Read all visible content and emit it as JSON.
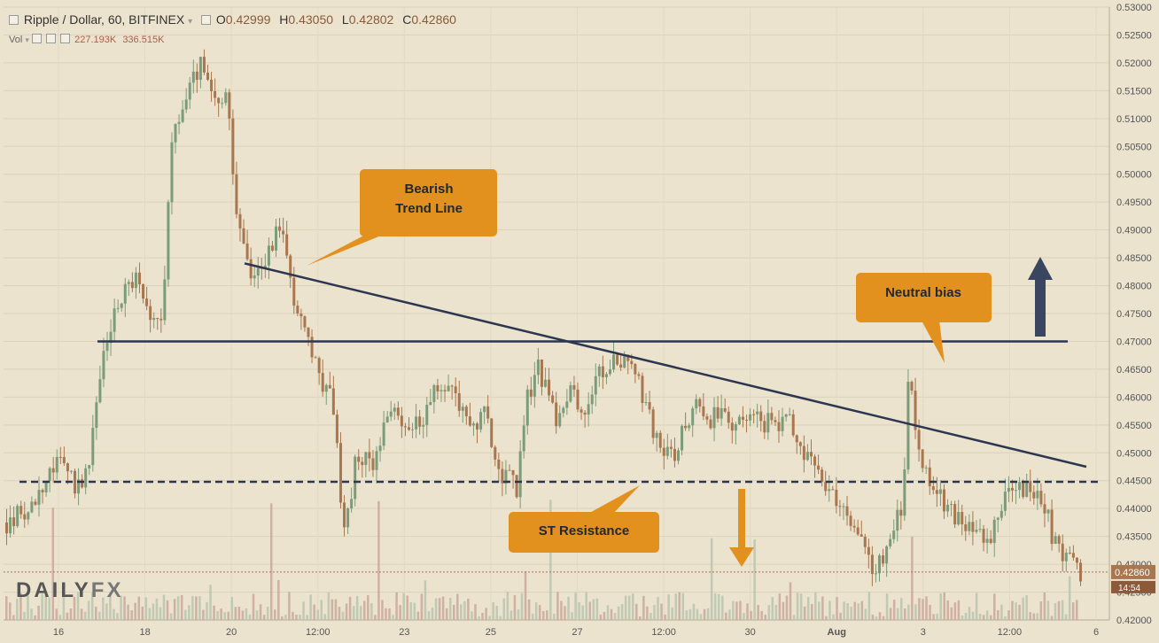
{
  "header": {
    "symbol": "Ripple / Dollar, 60, BITFINEX",
    "open_label": "O",
    "open": "0.42999",
    "high_label": "H",
    "high": "0.43050",
    "low_label": "L",
    "low": "0.42802",
    "close_label": "C",
    "close": "0.42860",
    "vol_label": "Vol",
    "vol1": "227.193K",
    "vol2": "336.515K"
  },
  "annotations": {
    "trend_line": "Bearish\nTrend Line",
    "neutral": "Neutral bias",
    "resistance": "ST Resistance"
  },
  "logo": {
    "part1": "DAILY",
    "part2": "FX"
  },
  "price_tag": {
    "price": "0.42860",
    "time": "14:54"
  },
  "colors": {
    "background": "#ebe3cd",
    "up": "#7a9c7a",
    "down": "#a8764f",
    "callout": "#e3911e",
    "lines": "#2c3650"
  },
  "chart_data": {
    "type": "candlestick",
    "title": "Ripple / Dollar, 60, BITFINEX",
    "ylim": [
      0.42,
      0.53
    ],
    "y_ticks": [
      "0.53000",
      "0.52500",
      "0.52000",
      "0.51500",
      "0.51000",
      "0.50500",
      "0.50000",
      "0.49500",
      "0.49000",
      "0.48500",
      "0.48000",
      "0.47500",
      "0.47000",
      "0.46500",
      "0.46000",
      "0.45500",
      "0.45000",
      "0.44500",
      "0.44000",
      "0.43500",
      "0.43000",
      "0.42500",
      "0.42000"
    ],
    "x_ticks": [
      "16",
      "18",
      "20",
      "12:00",
      "23",
      "25",
      "27",
      "12:00",
      "30",
      "Aug",
      "3",
      "12:00",
      "6"
    ],
    "price_path": [
      [
        0,
        0.4375
      ],
      [
        0.02,
        0.44
      ],
      [
        0.04,
        0.447
      ],
      [
        0.055,
        0.448
      ],
      [
        0.065,
        0.444
      ],
      [
        0.075,
        0.4455
      ],
      [
        0.09,
        0.468
      ],
      [
        0.105,
        0.478
      ],
      [
        0.12,
        0.482
      ],
      [
        0.135,
        0.472
      ],
      [
        0.145,
        0.476
      ],
      [
        0.155,
        0.508
      ],
      [
        0.17,
        0.515
      ],
      [
        0.18,
        0.52
      ],
      [
        0.195,
        0.512
      ],
      [
        0.205,
        0.514
      ],
      [
        0.215,
        0.49
      ],
      [
        0.225,
        0.483
      ],
      [
        0.24,
        0.484
      ],
      [
        0.255,
        0.492
      ],
      [
        0.265,
        0.48
      ],
      [
        0.28,
        0.47
      ],
      [
        0.29,
        0.464
      ],
      [
        0.305,
        0.458
      ],
      [
        0.31,
        0.445
      ],
      [
        0.315,
        0.435
      ],
      [
        0.325,
        0.449
      ],
      [
        0.34,
        0.448
      ],
      [
        0.355,
        0.458
      ],
      [
        0.37,
        0.454
      ],
      [
        0.385,
        0.456
      ],
      [
        0.4,
        0.461
      ],
      [
        0.415,
        0.462
      ],
      [
        0.43,
        0.455
      ],
      [
        0.445,
        0.457
      ],
      [
        0.46,
        0.446
      ],
      [
        0.475,
        0.444
      ],
      [
        0.485,
        0.46
      ],
      [
        0.495,
        0.466
      ],
      [
        0.51,
        0.456
      ],
      [
        0.525,
        0.462
      ],
      [
        0.535,
        0.456
      ],
      [
        0.55,
        0.464
      ],
      [
        0.565,
        0.466
      ],
      [
        0.58,
        0.468
      ],
      [
        0.59,
        0.461
      ],
      [
        0.605,
        0.452
      ],
      [
        0.615,
        0.449
      ],
      [
        0.625,
        0.451
      ],
      [
        0.64,
        0.459
      ],
      [
        0.655,
        0.456
      ],
      [
        0.67,
        0.457
      ],
      [
        0.685,
        0.454
      ],
      [
        0.7,
        0.456
      ],
      [
        0.715,
        0.455
      ],
      [
        0.73,
        0.455
      ],
      [
        0.745,
        0.449
      ],
      [
        0.76,
        0.444
      ],
      [
        0.775,
        0.441
      ],
      [
        0.79,
        0.436
      ],
      [
        0.8,
        0.432
      ],
      [
        0.81,
        0.429
      ],
      [
        0.825,
        0.435
      ],
      [
        0.835,
        0.442
      ],
      [
        0.84,
        0.4655
      ],
      [
        0.85,
        0.45
      ],
      [
        0.86,
        0.445
      ],
      [
        0.875,
        0.44
      ],
      [
        0.89,
        0.438
      ],
      [
        0.905,
        0.435
      ],
      [
        0.915,
        0.432
      ],
      [
        0.925,
        0.441
      ],
      [
        0.94,
        0.444
      ],
      [
        0.955,
        0.443
      ],
      [
        0.965,
        0.442
      ],
      [
        0.975,
        0.434
      ],
      [
        0.985,
        0.43
      ],
      [
        0.995,
        0.431
      ],
      [
        1.0,
        0.4286
      ]
    ],
    "bearish_trend_line": {
      "start_price": 0.484,
      "end_price": 0.4475
    },
    "neutral_bias_level": 0.47,
    "st_resistance_level": 0.4448
  }
}
